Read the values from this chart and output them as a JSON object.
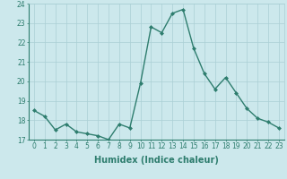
{
  "x": [
    0,
    1,
    2,
    3,
    4,
    5,
    6,
    7,
    8,
    9,
    10,
    11,
    12,
    13,
    14,
    15,
    16,
    17,
    18,
    19,
    20,
    21,
    22,
    23
  ],
  "y": [
    18.5,
    18.2,
    17.5,
    17.8,
    17.4,
    17.3,
    17.2,
    17.0,
    17.8,
    17.6,
    19.9,
    22.8,
    22.5,
    23.5,
    23.7,
    21.7,
    20.4,
    19.6,
    20.2,
    19.4,
    18.6,
    18.1,
    17.9,
    17.6
  ],
  "line_color": "#2e7d6e",
  "marker": "D",
  "marker_size": 2.0,
  "bg_color": "#cce8ec",
  "grid_color": "#aacfd4",
  "xlabel": "Humidex (Indice chaleur)",
  "ylim": [
    17,
    24
  ],
  "xlim": [
    -0.5,
    23.5
  ],
  "yticks": [
    17,
    18,
    19,
    20,
    21,
    22,
    23,
    24
  ],
  "xticks": [
    0,
    1,
    2,
    3,
    4,
    5,
    6,
    7,
    8,
    9,
    10,
    11,
    12,
    13,
    14,
    15,
    16,
    17,
    18,
    19,
    20,
    21,
    22,
    23
  ],
  "tick_label_fontsize": 5.5,
  "xlabel_fontsize": 7.0,
  "tick_color": "#2e7d6e",
  "label_color": "#2e7d6e",
  "linewidth": 1.0
}
